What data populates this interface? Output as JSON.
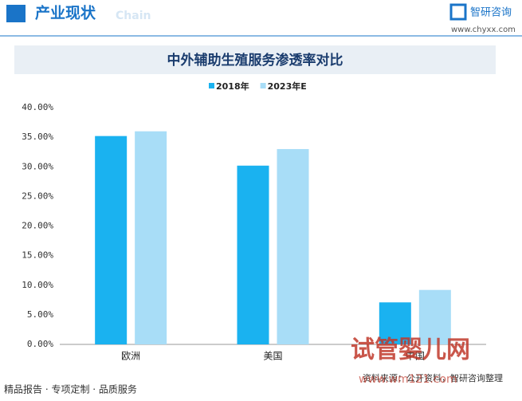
{
  "header": {
    "section": "产业现状",
    "faded": "Chain",
    "brand": "智研咨询",
    "site": "www.chyxx.com"
  },
  "chart_data": {
    "type": "bar",
    "title": "中外辅助生殖服务渗透率对比",
    "categories": [
      "欧洲",
      "美国",
      "中国"
    ],
    "series": [
      {
        "name": "2018年",
        "color": "#1ab2f0",
        "values": [
          35.2,
          30.2,
          7.1
        ]
      },
      {
        "name": "2023年E",
        "color": "#a8ddf7",
        "values": [
          36.0,
          33.0,
          9.2
        ]
      }
    ],
    "ylim": [
      0,
      40
    ],
    "yticks": [
      {
        "value": 0,
        "label": "0.00%"
      },
      {
        "value": 5,
        "label": "5.00%"
      },
      {
        "value": 10,
        "label": "10.00%"
      },
      {
        "value": 15,
        "label": "15.00%"
      },
      {
        "value": 20,
        "label": "20.00%"
      },
      {
        "value": 25,
        "label": "25.00%"
      },
      {
        "value": 30,
        "label": "30.00%"
      },
      {
        "value": 35,
        "label": "35.00%"
      },
      {
        "value": 40,
        "label": "40.00%"
      }
    ],
    "grid": false,
    "legend": "top"
  },
  "footer": {
    "slogan": "精品报告 · 专项定制 · 品质服务",
    "source": "资料来源：公开资料，智研咨询整理"
  },
  "watermark": {
    "name": "试管婴儿网",
    "site": "www.wm121.com"
  }
}
